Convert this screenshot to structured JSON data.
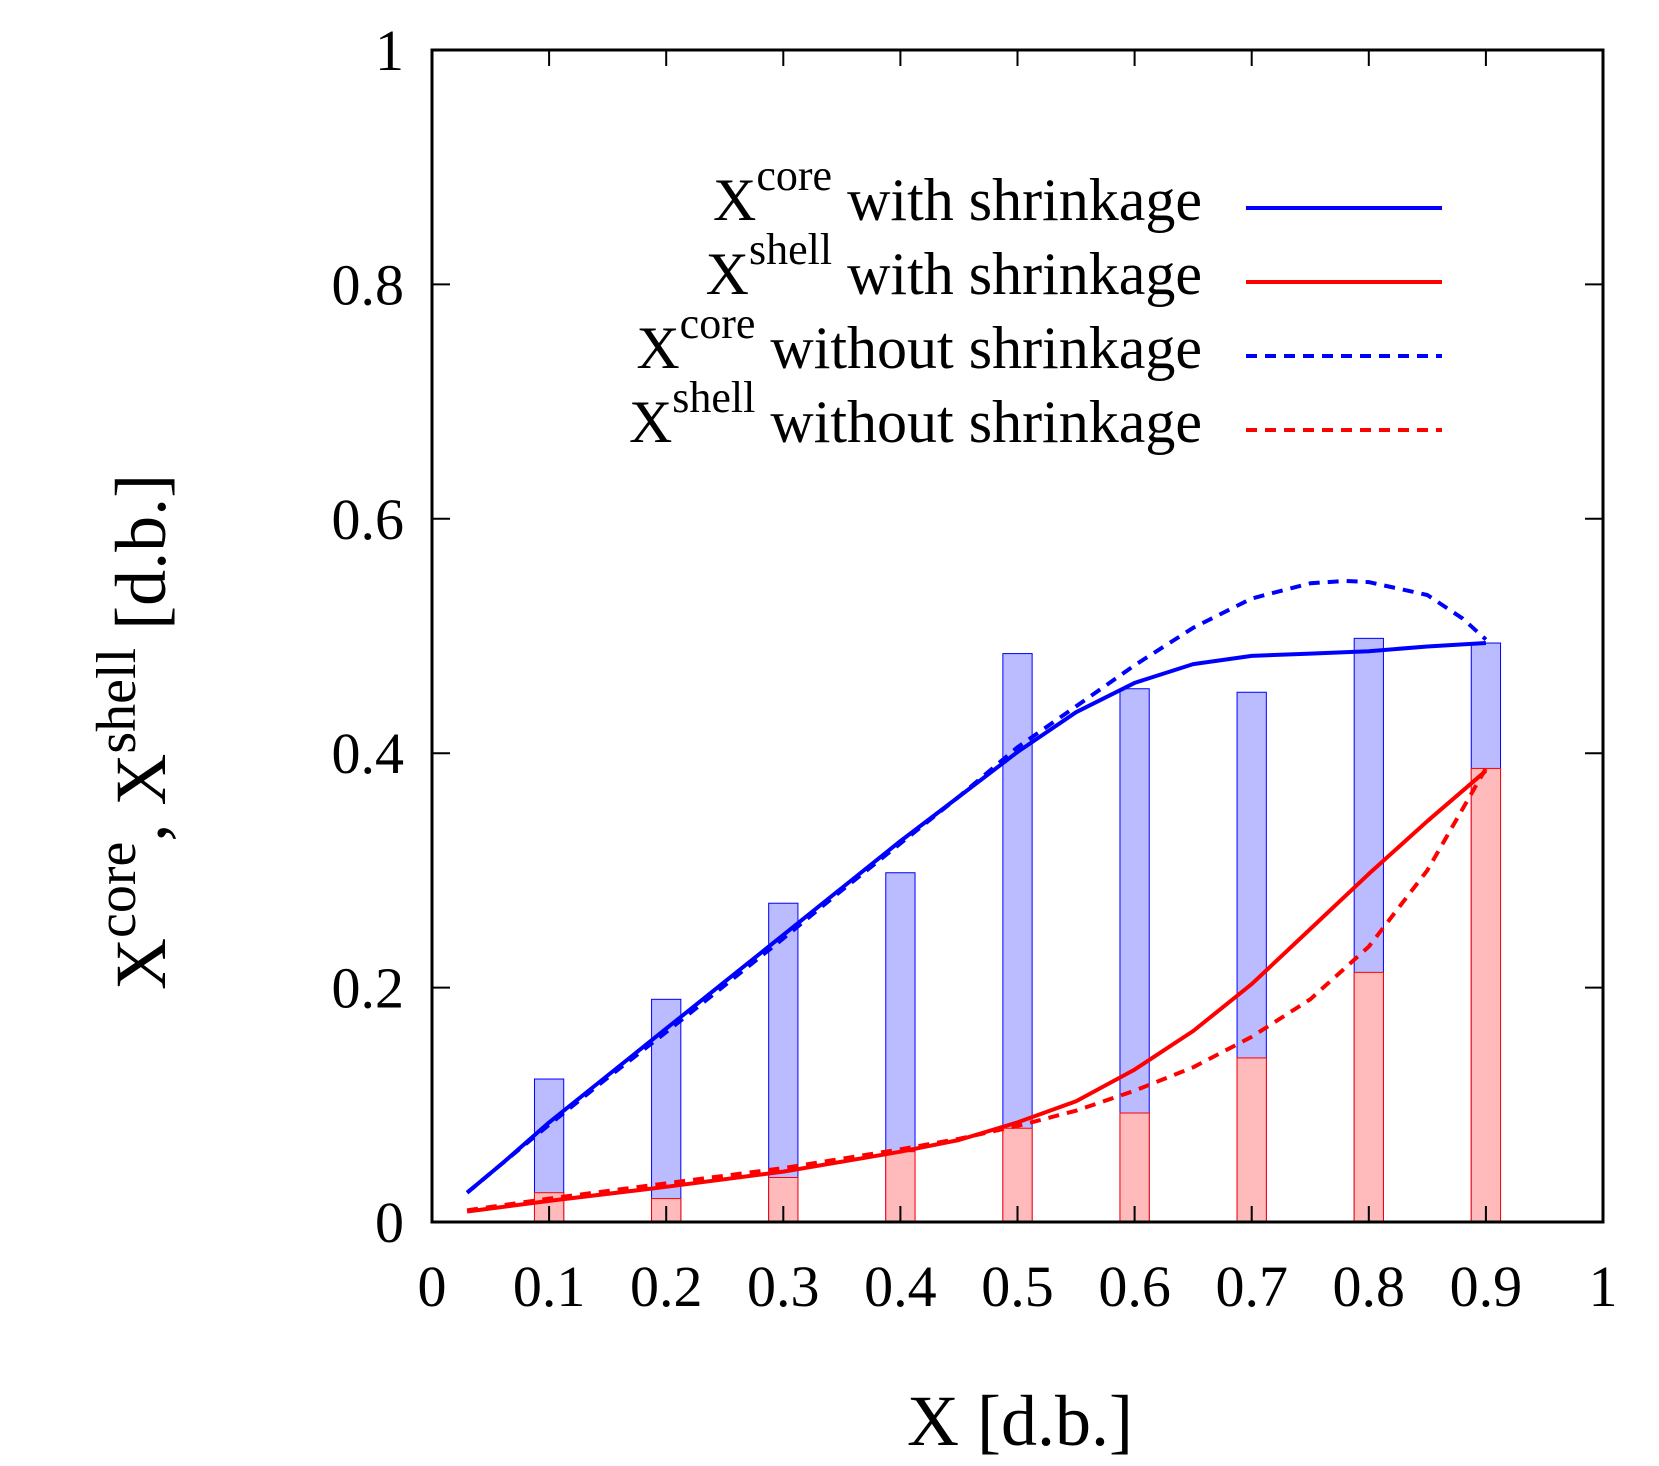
{
  "chart_data": {
    "type": "bar",
    "x_label": {
      "main": "X [d.b.]"
    },
    "y_label": {
      "base1": "X",
      "sup1": "core",
      "sep": ", ",
      "base2": "X",
      "sup2": "shell",
      "unit": " [d.b.]"
    },
    "xlim": [
      0,
      1
    ],
    "ylim": [
      0,
      1
    ],
    "x_ticks": [
      "0",
      "0.1",
      "0.2",
      "0.3",
      "0.4",
      "0.5",
      "0.6",
      "0.7",
      "0.8",
      "0.9",
      "1"
    ],
    "y_ticks": [
      "0",
      "0.2",
      "0.4",
      "0.6",
      "0.8",
      "1"
    ],
    "x_tick_values": [
      0,
      0.1,
      0.2,
      0.3,
      0.4,
      0.5,
      0.6,
      0.7,
      0.8,
      0.9,
      1
    ],
    "y_tick_values": [
      0,
      0.2,
      0.4,
      0.6,
      0.8,
      1
    ],
    "grid": false,
    "legend_position": "top-right",
    "legend": [
      {
        "base": "X",
        "sup": "core",
        "text": " with shrinkage",
        "color": "#0000ff",
        "dashed": false
      },
      {
        "base": "X",
        "sup": "shell",
        "text": " with shrinkage",
        "color": "#ff0000",
        "dashed": false
      },
      {
        "base": "X",
        "sup": "core",
        "text": " without shrinkage",
        "color": "#0000ff",
        "dashed": true
      },
      {
        "base": "X",
        "sup": "shell",
        "text": " without shrinkage",
        "color": "#ff0000",
        "dashed": true
      }
    ],
    "bars": {
      "x": [
        0.1,
        0.2,
        0.3,
        0.4,
        0.5,
        0.6,
        0.7,
        0.8,
        0.9
      ],
      "core": [
        0.122,
        0.19,
        0.272,
        0.298,
        0.485,
        0.455,
        0.452,
        0.498,
        0.494
      ],
      "shell": [
        0.025,
        0.02,
        0.038,
        0.06,
        0.08,
        0.093,
        0.14,
        0.213,
        0.387
      ],
      "core_fill": "#bbbbff",
      "core_stroke": "#0000ff",
      "shell_fill": "#ffbbbb",
      "shell_stroke": "#ff0000",
      "width": 0.025
    },
    "series": [
      {
        "x": [
          0.03,
          0.06,
          0.1,
          0.15,
          0.2,
          0.25,
          0.3,
          0.35,
          0.4,
          0.45,
          0.5,
          0.55,
          0.6,
          0.65,
          0.7,
          0.75,
          0.8,
          0.85,
          0.9
        ],
        "y": [
          0.025,
          0.05,
          0.085,
          0.125,
          0.165,
          0.205,
          0.245,
          0.285,
          0.325,
          0.363,
          0.401,
          0.435,
          0.46,
          0.476,
          0.483,
          0.485,
          0.487,
          0.491,
          0.494
        ],
        "color": "#0000ff",
        "dashed": false
      },
      {
        "x": [
          0.03,
          0.1,
          0.2,
          0.3,
          0.4,
          0.45,
          0.5,
          0.55,
          0.6,
          0.65,
          0.7,
          0.75,
          0.8,
          0.85,
          0.9
        ],
        "y": [
          0.009,
          0.018,
          0.03,
          0.043,
          0.06,
          0.07,
          0.085,
          0.103,
          0.13,
          0.163,
          0.203,
          0.25,
          0.297,
          0.342,
          0.385
        ],
        "color": "#ff0000",
        "dashed": false
      },
      {
        "x": [
          0.03,
          0.06,
          0.1,
          0.15,
          0.2,
          0.25,
          0.3,
          0.35,
          0.4,
          0.45,
          0.5,
          0.55,
          0.6,
          0.65,
          0.7,
          0.75,
          0.78,
          0.8,
          0.85,
          0.88,
          0.9
        ],
        "y": [
          0.025,
          0.05,
          0.083,
          0.123,
          0.162,
          0.202,
          0.242,
          0.283,
          0.323,
          0.363,
          0.405,
          0.44,
          0.475,
          0.507,
          0.532,
          0.545,
          0.547,
          0.546,
          0.535,
          0.515,
          0.497
        ],
        "color": "#0000ff",
        "dashed": true
      },
      {
        "x": [
          0.03,
          0.1,
          0.2,
          0.3,
          0.4,
          0.45,
          0.5,
          0.55,
          0.6,
          0.65,
          0.7,
          0.75,
          0.8,
          0.85,
          0.9
        ],
        "y": [
          0.01,
          0.02,
          0.033,
          0.046,
          0.062,
          0.071,
          0.082,
          0.095,
          0.112,
          0.132,
          0.158,
          0.19,
          0.235,
          0.3,
          0.387
        ],
        "color": "#ff0000",
        "dashed": true
      }
    ]
  }
}
